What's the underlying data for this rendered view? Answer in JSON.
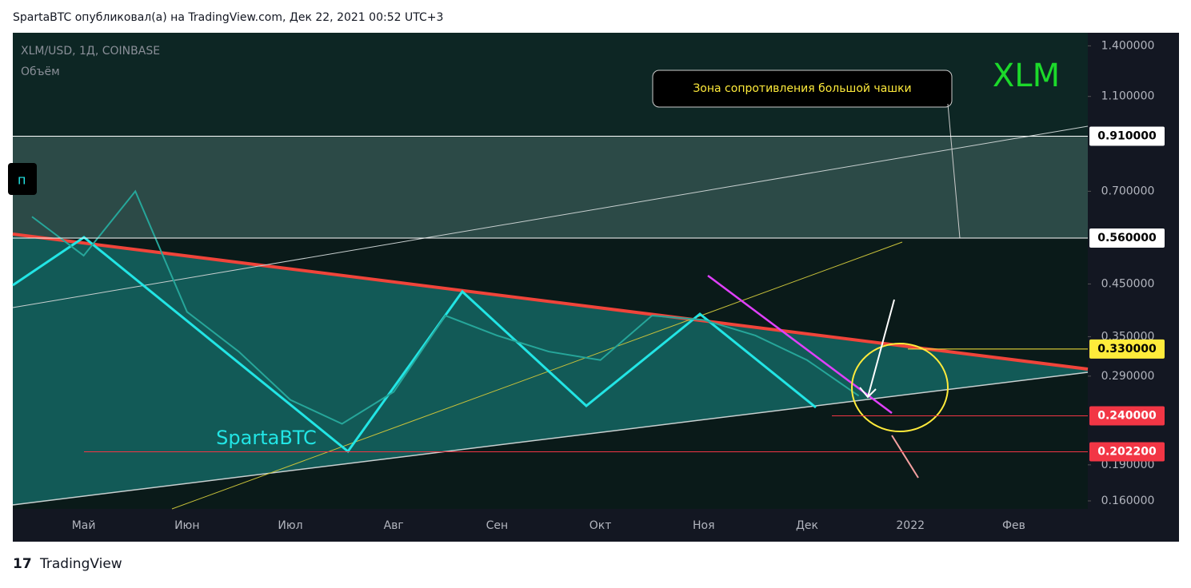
{
  "header": "SpartaBTC опубликовал(а) на TradingView.com, Дек 22, 2021 00:52 UTC+3",
  "chart_data": {
    "type": "line",
    "title": "XLM/USD, 1Д, COINBASE",
    "subtitle": "Объём",
    "categories": [
      null,
      "Май",
      null,
      "Июн",
      null,
      "Июл",
      null,
      "Авг",
      null,
      "Сен",
      null,
      "Окт",
      null,
      "Ноя",
      null,
      "Дек",
      null,
      "2022",
      null,
      "Фев",
      null
    ],
    "series": [
      {
        "color": "#26a69a",
        "values": [
          0.62,
          0.515,
          0.7,
          0.394,
          0.326,
          0.259,
          0.231,
          0.269,
          0.387,
          0.352,
          0.326,
          0.313,
          0.387,
          0.379,
          0.352,
          0.313,
          0.264,
          null,
          null,
          null,
          null
        ]
      }
    ],
    "log_scale": true,
    "grid": false,
    "ylim": [
      0.154,
      1.49
    ],
    "yticks": [
      {
        "value": 1.4,
        "label": "1.400000"
      },
      {
        "value": 1.1,
        "label": "1.100000"
      },
      {
        "value": 0.7,
        "label": "0.700000"
      },
      {
        "value": 0.45,
        "label": "0.450000"
      },
      {
        "value": 0.35,
        "label": "0.350000"
      },
      {
        "value": 0.29,
        "label": "0.290000"
      },
      {
        "value": 0.19,
        "label": "0.190000"
      },
      {
        "value": 0.16,
        "label": "0.160000"
      }
    ],
    "price_labels": [
      {
        "value": 0.91,
        "label": "0.910000",
        "color": "#ffffff"
      },
      {
        "value": 0.56,
        "label": "0.560000",
        "color": "#ffffff"
      },
      {
        "value": 0.33,
        "label": "0.330000",
        "color": "#ffeb3b"
      },
      {
        "value": 0.24,
        "label": "0.240000",
        "color": "#f23645"
      },
      {
        "value": 0.2022,
        "label": "0.202200",
        "color": "#f23645"
      }
    ],
    "annotations": [
      "Зона сопротивления большой чашки",
      "XLM",
      "SpartaBTC",
      "п"
    ]
  },
  "footer": "TradingView"
}
